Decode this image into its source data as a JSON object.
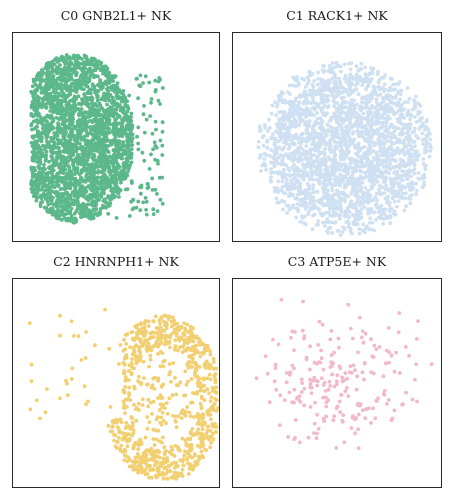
{
  "figure": {
    "panels": [
      {
        "id": "c0",
        "title": "C0 GNB2L1+ NK",
        "color": "#5cb88a",
        "n_points": 2600,
        "seed": 11
      },
      {
        "id": "c1",
        "title": "C1 RACK1+ NK",
        "color": "#cfe0f2",
        "n_points": 2400,
        "seed": 23
      },
      {
        "id": "c2",
        "title": "C2 HNRNPH1+ NK",
        "color": "#f2cf70",
        "n_points": 900,
        "seed": 37
      },
      {
        "id": "c3",
        "title": "C3 ATP5E+ NK",
        "color": "#f2b8cc",
        "n_points": 220,
        "seed": 51
      }
    ]
  },
  "chart_data": [
    {
      "type": "scatter",
      "title": "C0 GNB2L1+ NK",
      "xlabel": "",
      "ylabel": "",
      "grid": false,
      "legend": "none",
      "points": "dense cluster concentrated on left half, sparse scatter to lower right"
    },
    {
      "type": "scatter",
      "title": "C1 RACK1+ NK",
      "xlabel": "",
      "ylabel": "",
      "grid": false,
      "legend": "none",
      "points": "large roughly circular dense cloud centred slightly right"
    },
    {
      "type": "scatter",
      "title": "C2 HNRNPH1+ NK",
      "xlabel": "",
      "ylabel": "",
      "grid": false,
      "legend": "none",
      "points": "crescent along right edge and bottom, sparse to the left"
    },
    {
      "type": "scatter",
      "title": "C3 ATP5E+ NK",
      "xlabel": "",
      "ylabel": "",
      "grid": false,
      "legend": "none",
      "points": "sparse scattered points in centre region"
    }
  ]
}
